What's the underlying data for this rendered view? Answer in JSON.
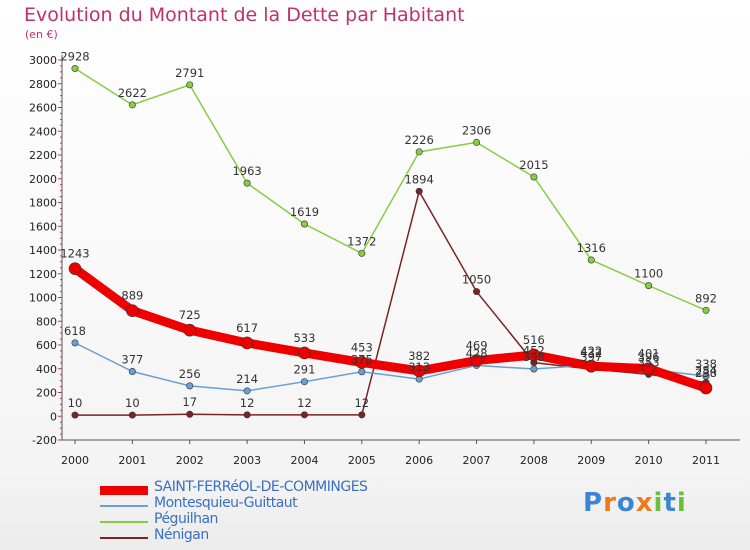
{
  "chart_data": {
    "type": "line",
    "title": "Evolution du Montant de la Dette par Habitant",
    "subtitle": "(en €)",
    "x": [
      "2000",
      "2001",
      "2002",
      "2003",
      "2004",
      "2005",
      "2006",
      "2007",
      "2008",
      "2009",
      "2010",
      "2011"
    ],
    "ylim": [
      -200,
      3000
    ],
    "yticks": [
      -200,
      0,
      200,
      400,
      600,
      800,
      1000,
      1200,
      1400,
      1600,
      1800,
      2000,
      2200,
      2400,
      2600,
      2800,
      3000
    ],
    "grid": false,
    "legend_position": "bottom-left",
    "series": [
      {
        "name": "SAINT-FERRéOL-DE-COMMINGES",
        "color": "#ee0000",
        "values": [
          1243,
          889,
          725,
          617,
          533,
          453,
          382,
          469,
          516,
          422,
          401,
          238
        ],
        "labels": [
          "1243",
          "889",
          "725",
          "617",
          "533",
          "453",
          "382",
          "469",
          "516",
          "422",
          "401",
          "238"
        ]
      },
      {
        "name": "Montesquieu-Guittaut",
        "color": "#6a9fd4",
        "values": [
          618,
          377,
          256,
          214,
          291,
          375,
          313,
          428,
          398,
          432,
          396,
          338
        ],
        "labels": [
          "618",
          "377",
          "256",
          "214",
          "291",
          "375",
          "313",
          "428",
          "398",
          "432",
          "396",
          "338"
        ]
      },
      {
        "name": "Péguilhan",
        "color": "#88cc44",
        "values": [
          2928,
          2622,
          2791,
          1963,
          1619,
          1372,
          2226,
          2306,
          2015,
          1316,
          1100,
          892
        ],
        "labels": [
          "2928",
          "2622",
          "2791",
          "1963",
          "1619",
          "1372",
          "2226",
          "2306",
          "2015",
          "1316",
          "1100",
          "892"
        ]
      },
      {
        "name": "Nénigan",
        "color": "#7a2424",
        "values": [
          10,
          10,
          17,
          12,
          12,
          12,
          1894,
          1050,
          452,
          397,
          353,
          284
        ],
        "labels": [
          "10",
          "10",
          "17",
          "12",
          "12",
          "12",
          "1894",
          "1050",
          "452",
          "397",
          "353",
          "284"
        ]
      }
    ]
  },
  "logo": {
    "text": "Proxiti",
    "letters": [
      "P",
      "r",
      "o",
      "x",
      "i",
      "t",
      "i"
    ],
    "colors": [
      "#3a86d6",
      "#f07a1a",
      "#3a86d6",
      "#f07a1a",
      "#6abf3a",
      "#3a86d6",
      "#6abf3a"
    ]
  }
}
